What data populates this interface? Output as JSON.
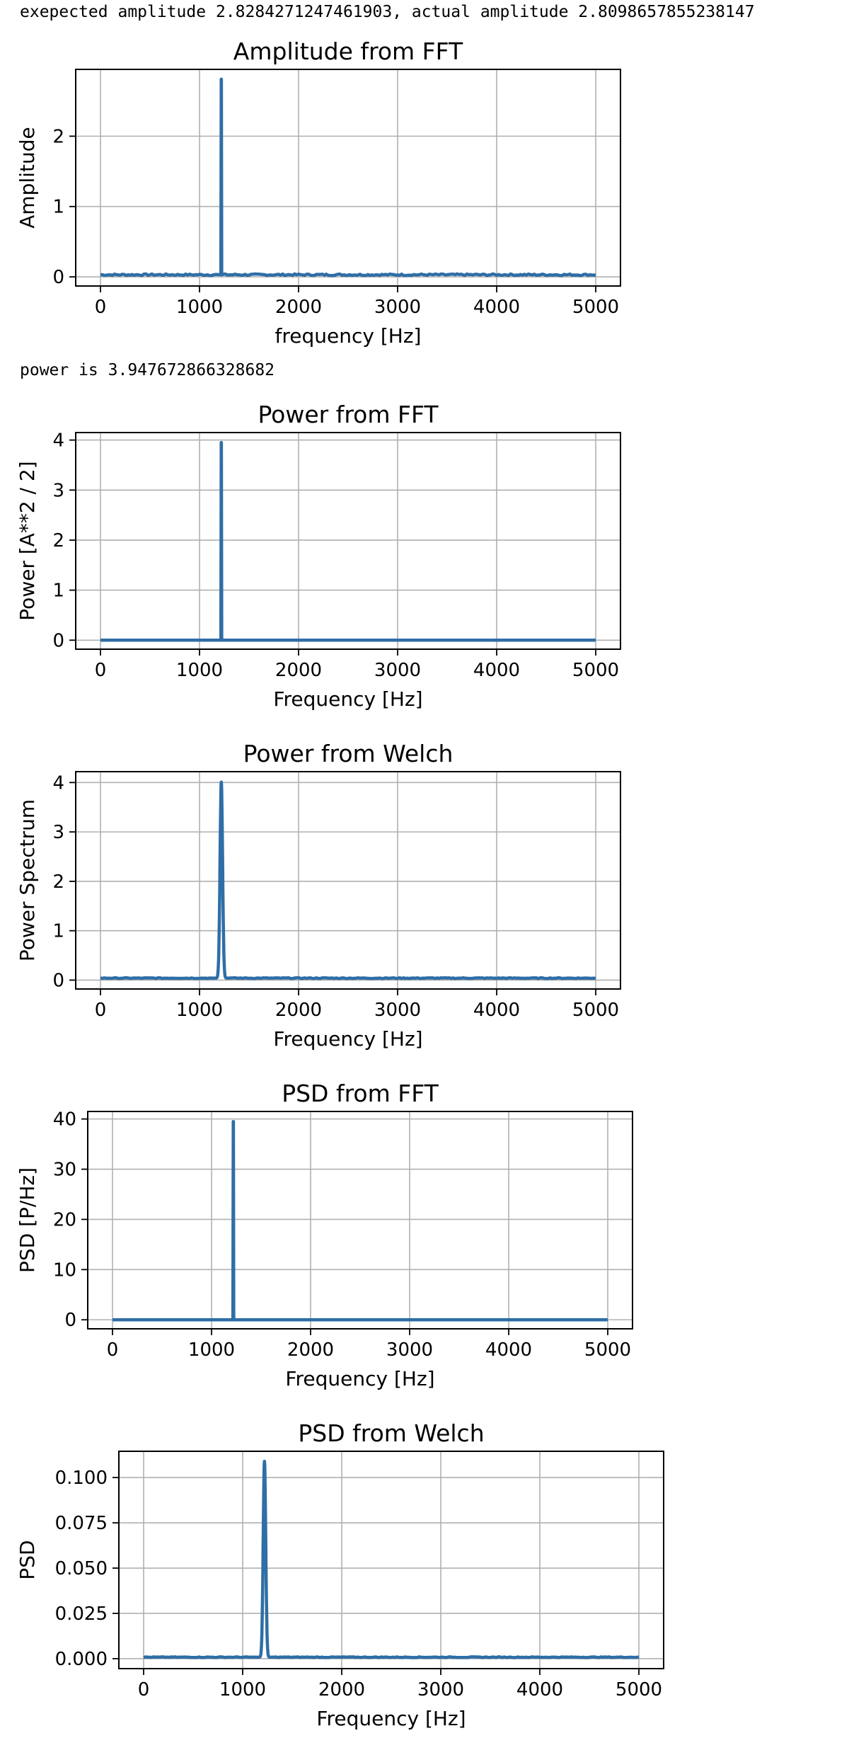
{
  "outputs": {
    "line1": "exepected amplitude 2.8284271247461903, actual amplitude 2.8098657855238147",
    "line2": "power is 3.947672866328682"
  },
  "colors": {
    "series": "#2f6ea6",
    "grid": "#b0b0b0",
    "frame": "#000000"
  },
  "chart_data": [
    {
      "type": "line",
      "title": "Amplitude from FFT",
      "xlabel": "frequency [Hz]",
      "ylabel": "Amplitude",
      "xlim": [
        -250,
        5250
      ],
      "ylim": [
        -0.13,
        2.95
      ],
      "xticks": [
        0,
        1000,
        2000,
        3000,
        4000,
        5000
      ],
      "yticks": [
        0,
        1,
        2
      ],
      "grid": true,
      "series": [
        {
          "peak_x": 1220,
          "peak_y": 2.81,
          "baseline": 0.03,
          "width": 2,
          "noise": 0.012
        }
      ]
    },
    {
      "type": "line",
      "title": "Power from FFT",
      "xlabel": "Frequency [Hz]",
      "ylabel": "Power [A**2 / 2]",
      "xlim": [
        -250,
        5250
      ],
      "ylim": [
        -0.18,
        4.15
      ],
      "xticks": [
        0,
        1000,
        2000,
        3000,
        4000,
        5000
      ],
      "yticks": [
        0,
        1,
        2,
        3,
        4
      ],
      "grid": true,
      "series": [
        {
          "peak_x": 1220,
          "peak_y": 3.95,
          "baseline": 0.0,
          "width": 2,
          "noise": 0.0
        }
      ]
    },
    {
      "type": "line",
      "title": "Power from Welch",
      "xlabel": "Frequency [Hz]",
      "ylabel": "Power Spectrum",
      "xlim": [
        -250,
        5250
      ],
      "ylim": [
        -0.18,
        4.22
      ],
      "xticks": [
        0,
        1000,
        2000,
        3000,
        4000,
        5000
      ],
      "yticks": [
        0,
        1,
        2,
        3,
        4
      ],
      "grid": true,
      "series": [
        {
          "peak_x": 1220,
          "peak_y": 4.01,
          "baseline": 0.04,
          "width": 28,
          "noise": 0.008
        }
      ]
    },
    {
      "type": "line",
      "title": "PSD from FFT",
      "xlabel": "Frequency [Hz]",
      "ylabel": "PSD [P/Hz]",
      "xlim": [
        -250,
        5250
      ],
      "ylim": [
        -1.8,
        41.5
      ],
      "xticks": [
        0,
        1000,
        2000,
        3000,
        4000,
        5000
      ],
      "yticks": [
        0,
        10,
        20,
        30,
        40
      ],
      "grid": true,
      "series": [
        {
          "peak_x": 1220,
          "peak_y": 39.5,
          "baseline": 0.0,
          "width": 2,
          "noise": 0.0
        }
      ]
    },
    {
      "type": "line",
      "title": "PSD from Welch",
      "xlabel": "Frequency [Hz]",
      "ylabel": "PSD",
      "xlim": [
        -250,
        5250
      ],
      "ylim": [
        -0.0055,
        0.1145
      ],
      "xticks": [
        0,
        1000,
        2000,
        3000,
        4000,
        5000
      ],
      "yticks": [
        0.0,
        0.025,
        0.05,
        0.075,
        0.1
      ],
      "yticklabels": [
        "0.000",
        "0.025",
        "0.050",
        "0.075",
        "0.100"
      ],
      "grid": true,
      "series": [
        {
          "peak_x": 1220,
          "peak_y": 0.109,
          "baseline": 0.0008,
          "width": 28,
          "noise": 0.0002
        }
      ]
    }
  ]
}
